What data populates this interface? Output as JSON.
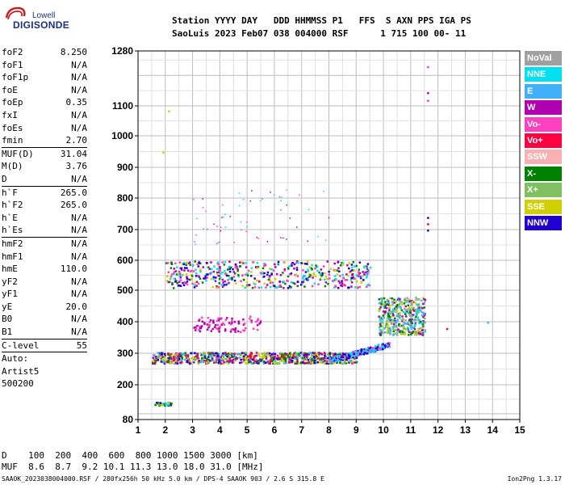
{
  "logo": {
    "line1": "Lowell",
    "line2": "DIGISONDE"
  },
  "header": {
    "line1": "Station YYYY DAY   DDD HHMMSS P1   FFS  S AXN PPS IGA PS",
    "line2": "SaoLuis 2023 Feb07 038 004000 RSF      1 715 100 00- 11"
  },
  "params_group1": [
    {
      "label": "foF2",
      "value": "8.250"
    },
    {
      "label": "foF1",
      "value": "N/A"
    },
    {
      "label": "foF1p",
      "value": "N/A"
    },
    {
      "label": "foE",
      "value": "N/A"
    },
    {
      "label": "foEp",
      "value": "0.35"
    },
    {
      "label": "fxI",
      "value": "N/A"
    },
    {
      "label": "foEs",
      "value": "N/A"
    },
    {
      "label": "fmin",
      "value": "2.70"
    }
  ],
  "params_group2": [
    {
      "label": "MUF(D)",
      "value": "31.04"
    },
    {
      "label": "M(D)",
      "value": "3.76"
    },
    {
      "label": "D",
      "value": "N/A"
    }
  ],
  "params_group3": [
    {
      "label": "h`F",
      "value": "265.0"
    },
    {
      "label": "h`F2",
      "value": "265.0"
    },
    {
      "label": "h`E",
      "value": "N/A"
    },
    {
      "label": "h`Es",
      "value": "N/A"
    }
  ],
  "params_group4": [
    {
      "label": "hmF2",
      "value": "N/A"
    },
    {
      "label": "hmF1",
      "value": "N/A"
    },
    {
      "label": "hmE",
      "value": "110.0"
    },
    {
      "label": "yF2",
      "value": "N/A"
    },
    {
      "label": "yF1",
      "value": "N/A"
    },
    {
      "label": "yE",
      "value": "20.0"
    },
    {
      "label": "B0",
      "value": "N/A"
    },
    {
      "label": "B1",
      "value": "N/A"
    }
  ],
  "params_group5": [
    {
      "label": "C-level",
      "value": "55"
    }
  ],
  "auto": {
    "line1": "Auto:",
    "line2": "Artist5",
    "line3": "500200"
  },
  "legend": [
    {
      "label": "NoVal",
      "color": "#a0a0a0"
    },
    {
      "label": "NNE",
      "color": "#00e0f0"
    },
    {
      "label": "E",
      "color": "#40b0f8"
    },
    {
      "label": "W",
      "color": "#b000b0"
    },
    {
      "label": "Vo-",
      "color": "#ff40c0"
    },
    {
      "label": "Vo+",
      "color": "#ff0040"
    },
    {
      "label": "SSW",
      "color": "#f8b0b0"
    },
    {
      "label": "X-",
      "color": "#008000"
    },
    {
      "label": "X+",
      "color": "#80c060"
    },
    {
      "label": "SSE",
      "color": "#d0d000"
    },
    {
      "label": "NNW",
      "color": "#2000d0"
    }
  ],
  "muf_table": {
    "d_line": "D    100  200  400  600  800 1000 1500 3000 [km]",
    "muf_line": "MUF  8.6  8.7  9.2 10.1 11.3 13.0 18.0 31.0 [MHz]"
  },
  "footer": {
    "left": "SAAOK_2023038004000.RSF / 280fx256h 50 kHz 5.0 km / DPS-4 SAAOK 903 / 2.6 S 315.8 E",
    "right": "Ion2Png 1.3.17"
  },
  "chart_data": {
    "type": "scatter",
    "x_ticks": [
      "1",
      "2",
      "3",
      "4",
      "5",
      "6",
      "7",
      "8",
      "9",
      "10",
      "11",
      "12",
      "13",
      "14",
      "15"
    ],
    "y_ticks": [
      "80",
      "200",
      "300",
      "400",
      "500",
      "600",
      "700",
      "800",
      "900",
      "1000",
      "1100",
      "1280"
    ],
    "xlim": [
      1,
      15
    ],
    "ylim": [
      80,
      1280
    ],
    "y_scale": "nonlinear",
    "grid": true,
    "traces": [
      {
        "name": "Es low",
        "x_range": [
          1.6,
          2.2
        ],
        "h_range": [
          130,
          142
        ],
        "colors": [
          "#2000d0",
          "#00e0f0",
          "#008000",
          "#d0d000"
        ]
      },
      {
        "name": "F trace",
        "x_range": [
          1.5,
          9.0
        ],
        "h_range": [
          270,
          305
        ],
        "colors": [
          "#2000d0",
          "#b000b0",
          "#ff0040",
          "#008000",
          "#d0d000",
          "#40b0f8",
          "#80c060"
        ]
      },
      {
        "name": "F ramp",
        "x_range": [
          8.0,
          10.2
        ],
        "h_range": [
          280,
          330
        ],
        "colors": [
          "#40b0f8",
          "#00e0f0",
          "#ff40c0",
          "#2000d0"
        ]
      },
      {
        "name": "F spread",
        "x_range": [
          9.8,
          11.5
        ],
        "h_range": [
          360,
          480
        ],
        "colors": [
          "#00e0f0",
          "#40b0f8",
          "#d0d000",
          "#008000",
          "#80c060",
          "#b000b0",
          "#a0a0a0"
        ]
      },
      {
        "name": "2F multi-hop",
        "x_range": [
          2.0,
          9.5
        ],
        "h_range": [
          510,
          600
        ],
        "colors": [
          "#b000b0",
          "#ff40c0",
          "#d0d000",
          "#008000",
          "#2000d0",
          "#00e0f0"
        ]
      },
      {
        "name": "mid echoes",
        "x_range": [
          3.0,
          5.5
        ],
        "h_range": [
          370,
          420
        ],
        "colors": [
          "#b000b0",
          "#ff40c0"
        ]
      },
      {
        "name": "high scatter",
        "x_range": [
          3.0,
          8.0
        ],
        "h_range": [
          650,
          830
        ],
        "colors": [
          "#b000b0",
          "#ff40c0",
          "#00e0f0"
        ]
      }
    ]
  }
}
